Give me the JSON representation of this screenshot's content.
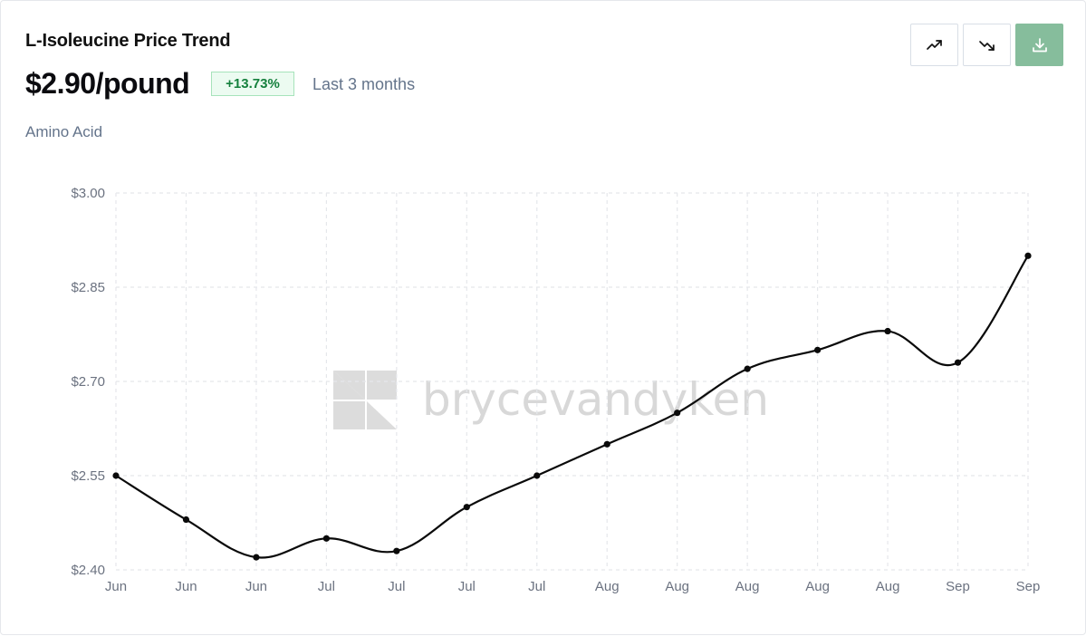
{
  "header": {
    "title": "L-Isoleucine Price Trend",
    "price": "$2.90/pound",
    "change": "+13.73%",
    "period": "Last 3 months",
    "category": "Amino Acid"
  },
  "toolbar": {
    "trend_up_icon": "trending-up-icon",
    "trend_down_icon": "trending-down-icon",
    "download_icon": "download-icon",
    "download_color": "#86bd9c"
  },
  "watermark": {
    "text": "brycevandyken"
  },
  "colors": {
    "line": "#0a0a0a",
    "grid": "#e5e7eb",
    "badge_text": "#15803d",
    "badge_bg": "#ecfbf1"
  },
  "chart_data": {
    "type": "line",
    "title": "L-Isoleucine Price Trend",
    "xlabel": "",
    "ylabel": "",
    "categories": [
      "Jun",
      "Jun",
      "Jun",
      "Jul",
      "Jul",
      "Jul",
      "Jul",
      "Aug",
      "Aug",
      "Aug",
      "Aug",
      "Aug",
      "Sep",
      "Sep"
    ],
    "values": [
      2.55,
      2.48,
      2.42,
      2.45,
      2.43,
      2.5,
      2.55,
      2.6,
      2.65,
      2.72,
      2.75,
      2.78,
      2.73,
      2.9
    ],
    "y_ticks": [
      "$3.00",
      "$2.85",
      "$2.70",
      "$2.55",
      "$2.40"
    ],
    "y_tick_values": [
      3.0,
      2.85,
      2.7,
      2.55,
      2.4
    ],
    "ylim": [
      2.4,
      3.0
    ],
    "grid": true,
    "legend": "none"
  }
}
